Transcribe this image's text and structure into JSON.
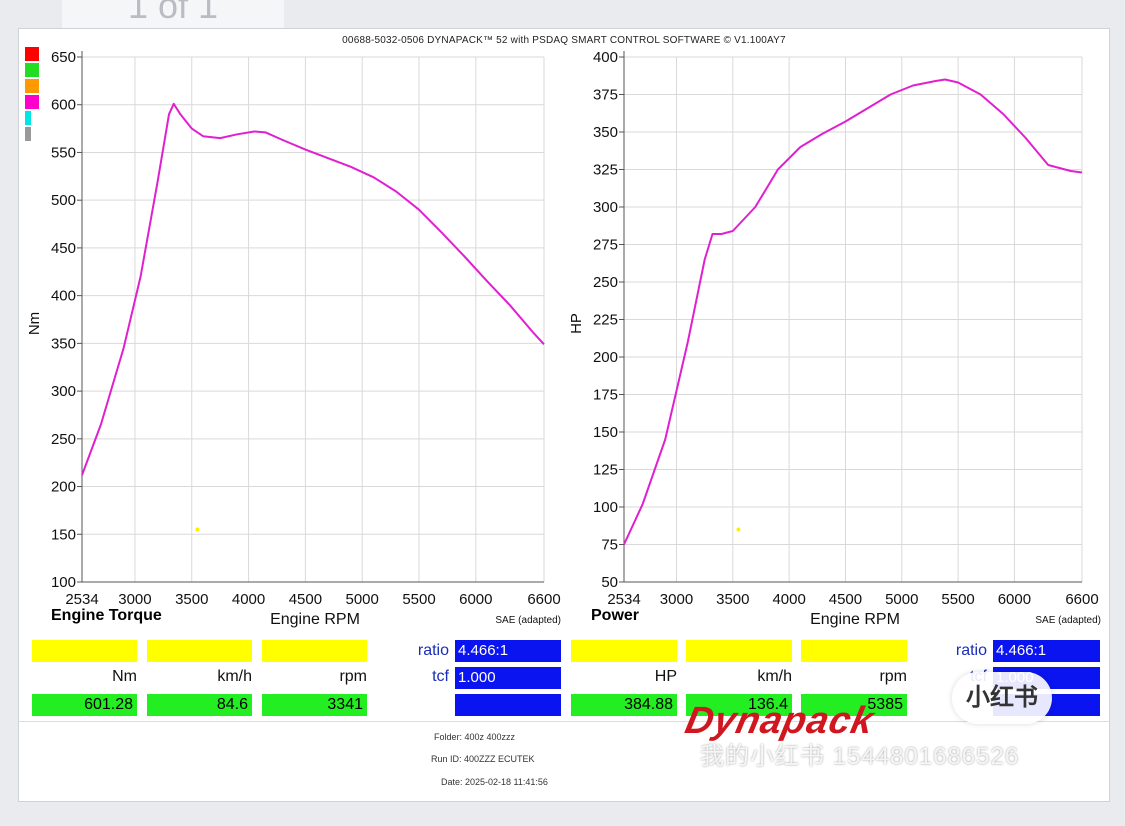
{
  "page_tab": "1 of 1",
  "header_title": "00688-5032-0506 DYNAPACK™ 52 with PSDAQ SMART CONTROL SOFTWARE © V1.100AY7",
  "legend_colors": [
    "#ff0000",
    "#22dd22",
    "#ff9900",
    "#ff00cc",
    "#00e5e5",
    "#999999"
  ],
  "chart_data": [
    {
      "type": "line",
      "title": "Engine Torque",
      "xlabel": "Engine RPM",
      "ylabel": "Nm",
      "note": "SAE (adapted)",
      "xlim": [
        2534,
        6600
      ],
      "ylim": [
        100,
        650
      ],
      "xticks": [
        "2534",
        "3000",
        "3500",
        "4000",
        "4500",
        "5000",
        "5500",
        "6000",
        "6600"
      ],
      "xtick_values": [
        2534,
        3000,
        3500,
        4000,
        4500,
        5000,
        5500,
        6000,
        6600
      ],
      "yticks": [
        100,
        150,
        200,
        250,
        300,
        350,
        400,
        450,
        500,
        550,
        600,
        650
      ],
      "line_color": "#e020d0",
      "series": [
        {
          "x": [
            2534,
            2700,
            2900,
            3050,
            3200,
            3300,
            3341,
            3400,
            3500,
            3600,
            3750,
            3900,
            4050,
            4150,
            4300,
            4500,
            4700,
            4900,
            5100,
            5300,
            5500,
            5700,
            5900,
            6100,
            6300,
            6500,
            6600
          ],
          "y": [
            212,
            265,
            345,
            420,
            520,
            590,
            601,
            590,
            575,
            567,
            565,
            569,
            572,
            571,
            563,
            553,
            544,
            535,
            524,
            509,
            490,
            466,
            441,
            415,
            390,
            362,
            349
          ]
        }
      ],
      "marker": {
        "x": 3550,
        "y": 155
      },
      "readout": {
        "values": [
          "601.28",
          "84.6",
          "3341"
        ],
        "units": [
          "Nm",
          "km/h",
          "rpm"
        ]
      }
    },
    {
      "type": "line",
      "title": "Power",
      "xlabel": "Engine RPM",
      "ylabel": "HP",
      "note": "SAE (adapted)",
      "xlim": [
        2534,
        6600
      ],
      "ylim": [
        50,
        400
      ],
      "xticks": [
        "2534",
        "3000",
        "3500",
        "4000",
        "4500",
        "5000",
        "5500",
        "6000",
        "6600"
      ],
      "xtick_values": [
        2534,
        3000,
        3500,
        4000,
        4500,
        5000,
        5500,
        6000,
        6600
      ],
      "yticks": [
        50,
        75,
        100,
        125,
        150,
        175,
        200,
        225,
        250,
        275,
        300,
        325,
        350,
        375,
        400
      ],
      "line_color": "#e020d0",
      "series": [
        {
          "x": [
            2534,
            2700,
            2900,
            3100,
            3250,
            3320,
            3400,
            3500,
            3700,
            3900,
            4100,
            4300,
            4500,
            4700,
            4900,
            5100,
            5300,
            5385,
            5500,
            5700,
            5900,
            6100,
            6300,
            6500,
            6600
          ],
          "y": [
            75,
            102,
            145,
            210,
            265,
            282,
            282,
            284,
            300,
            325,
            340,
            349,
            357,
            366,
            375,
            381,
            384,
            385,
            383,
            375,
            362,
            346,
            328,
            324,
            323
          ]
        }
      ],
      "marker": {
        "x": 3550,
        "y": 85
      },
      "readout": {
        "values": [
          "384.88",
          "136.4",
          "5385"
        ],
        "units": [
          "HP",
          "km/h",
          "rpm"
        ]
      }
    }
  ],
  "panel": {
    "ratio_label": "ratio",
    "ratio_value": "4.466:1",
    "tcf_label": "tcf",
    "tcf_value": "1.000"
  },
  "footer": {
    "folder": "Folder:  400z 400zzz",
    "run_id": "Run ID:  400ZZZ ECUTEK",
    "date": "Date:  2025-02-18 11:41:56"
  },
  "logo": "Dynapack",
  "watermark": "我的小红书 1544801686526",
  "badge": "小红书"
}
